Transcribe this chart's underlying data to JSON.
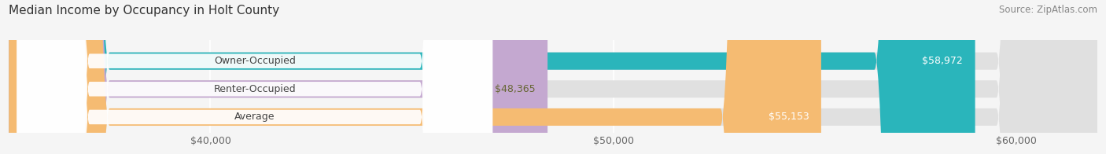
{
  "title": "Median Income by Occupancy in Holt County",
  "source": "Source: ZipAtlas.com",
  "categories": [
    "Owner-Occupied",
    "Renter-Occupied",
    "Average"
  ],
  "values": [
    58972,
    48365,
    55153
  ],
  "bar_colors": [
    "#2ab5bb",
    "#c4a8d0",
    "#f5bb72"
  ],
  "bar_labels": [
    "$58,972",
    "$48,365",
    "$55,153"
  ],
  "label_colors": [
    "#ffffff",
    "#666633",
    "#ffffff"
  ],
  "xlim": [
    35000,
    62000
  ],
  "xticks": [
    40000,
    50000,
    60000
  ],
  "xticklabels": [
    "$40,000",
    "$50,000",
    "$60,000"
  ],
  "bg_color": "#f5f5f5",
  "bar_bg_color": "#e0e0e0",
  "title_fontsize": 11,
  "source_fontsize": 8.5,
  "tick_fontsize": 9,
  "label_fontsize": 9,
  "cat_fontsize": 9
}
